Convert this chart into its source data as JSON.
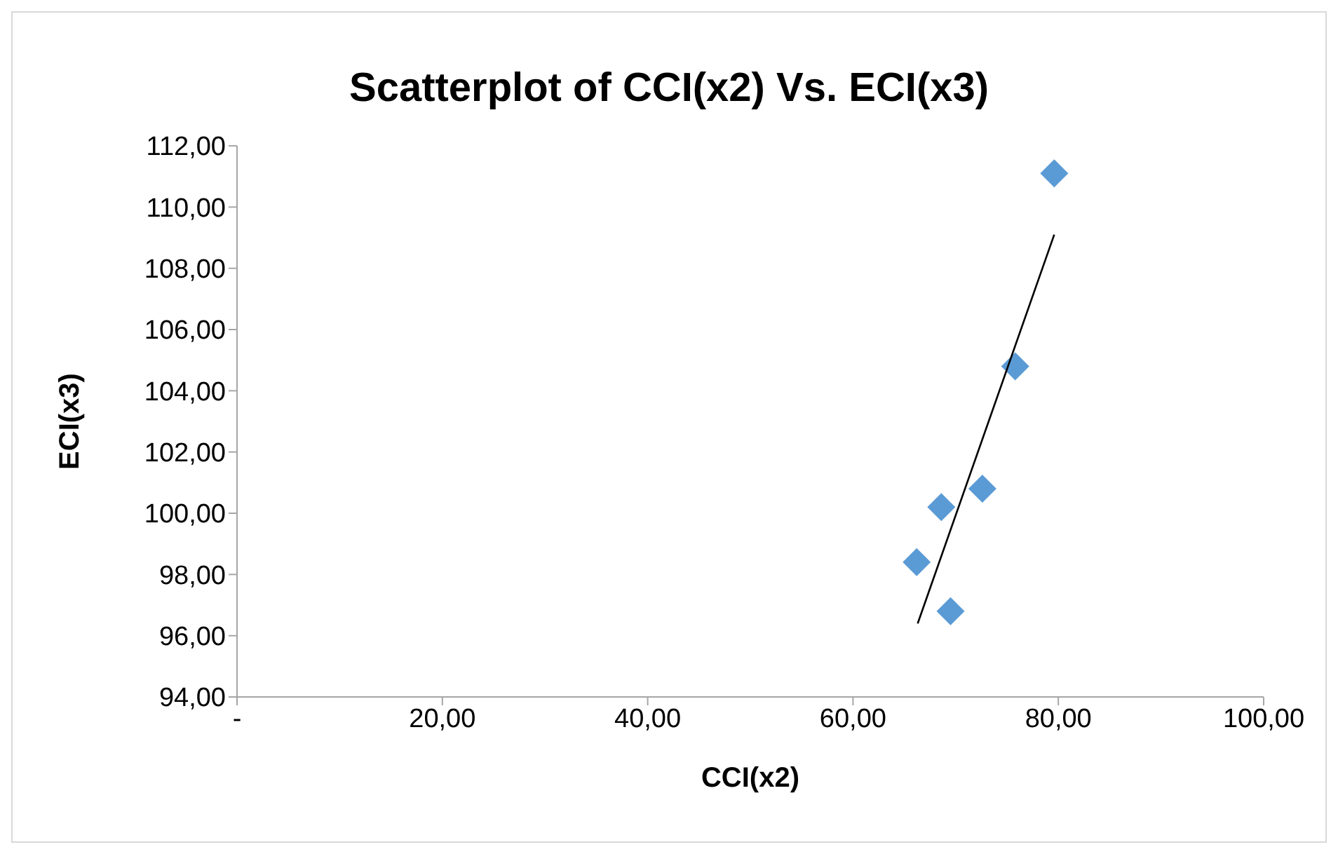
{
  "chart_data": {
    "type": "scatter",
    "title": "Scatterplot of CCI(x2) Vs. ECI(x3)",
    "xlabel": "CCI(x2)",
    "ylabel": "ECI(x3)",
    "xlim": [
      0,
      100
    ],
    "xticks": [
      {
        "value": 0,
        "label": "-"
      },
      {
        "value": 20,
        "label": "20,00"
      },
      {
        "value": 40,
        "label": "40,00"
      },
      {
        "value": 60,
        "label": "60,00"
      },
      {
        "value": 80,
        "label": "80,00"
      },
      {
        "value": 100,
        "label": "100,00"
      }
    ],
    "ylim": [
      94,
      112
    ],
    "yticks": [
      {
        "value": 94,
        "label": "94,00"
      },
      {
        "value": 96,
        "label": "96,00"
      },
      {
        "value": 98,
        "label": "98,00"
      },
      {
        "value": 100,
        "label": "100,00"
      },
      {
        "value": 102,
        "label": "102,00"
      },
      {
        "value": 104,
        "label": "104,00"
      },
      {
        "value": 106,
        "label": "106,00"
      },
      {
        "value": 108,
        "label": "108,00"
      },
      {
        "value": 110,
        "label": "110,00"
      },
      {
        "value": 112,
        "label": "112,00"
      }
    ],
    "grid": false,
    "legend": false,
    "marker": "diamond",
    "series": [
      {
        "color": "#5b9bd5",
        "x": [
          79.6,
          75.8,
          72.6,
          68.6,
          66.2,
          69.5
        ],
        "values": [
          111.1,
          104.8,
          100.8,
          100.2,
          98.4,
          96.8
        ]
      },
      {
        "type": "line",
        "color": "#000000",
        "marker": "none",
        "x": [
          66.3,
          79.6
        ],
        "values": [
          96.4,
          109.1
        ]
      }
    ]
  }
}
